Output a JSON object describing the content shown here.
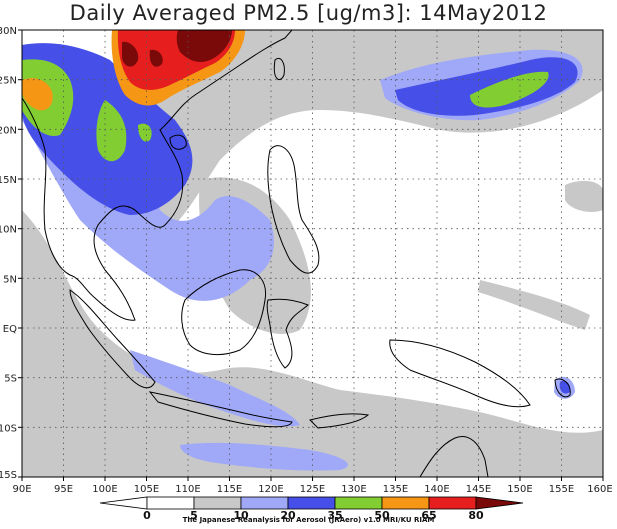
{
  "title": "Daily Averaged PM2.5 [ug/m3]: 14May2012",
  "credit": "The Japanese Reanalysis for Aerosol (JRAero) v1.0 MRI/KU RIAM",
  "lon_labels": [
    "90E",
    "95E",
    "100E",
    "105E",
    "110E",
    "115E",
    "120E",
    "125E",
    "130E",
    "135E",
    "140E",
    "145E",
    "150E",
    "155E",
    "160E"
  ],
  "lat_labels": [
    "30N",
    "25N",
    "20N",
    "15N",
    "10N",
    "5N",
    "EQ",
    "5S",
    "10S",
    "15S"
  ],
  "colorbar": {
    "labels": [
      "0",
      "5",
      "10",
      "20",
      "35",
      "50",
      "65",
      "80"
    ],
    "colors": [
      "#ffffff",
      "#ffffff",
      "#c8c8c8",
      "#a0a8f8",
      "#4650e8",
      "#82cd32",
      "#f59614",
      "#e61e1e",
      "#7a0a0a"
    ]
  }
}
